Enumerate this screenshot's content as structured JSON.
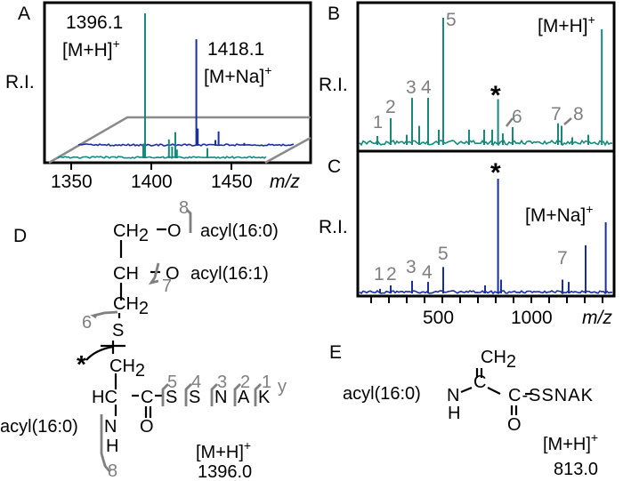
{
  "colors": {
    "mh": "#17887a",
    "mna": "#1a2f9e",
    "label_gray": "#7f7f7f",
    "plane": "#8a8a8a"
  },
  "chart_data": [
    {
      "panel": "A",
      "type": "line",
      "title": "",
      "xlabel": "m/z",
      "ylabel": "R.I.",
      "xlim": [
        1333,
        1500
      ],
      "xticks": [
        1350,
        1400,
        1450
      ],
      "series": [
        {
          "name": "[M+H]+",
          "color": "#17887a",
          "peaks": [
            [
              1396.1,
              100
            ],
            [
              1395,
              10
            ],
            [
              1411,
              13
            ],
            [
              1413,
              8
            ],
            [
              1415,
              18
            ],
            [
              1416,
              6
            ],
            [
              1435,
              7
            ]
          ]
        },
        {
          "name": "[M+Na]+",
          "color": "#1a2f9e",
          "peaks": [
            [
              1418.1,
              74
            ],
            [
              1419,
              12
            ],
            [
              1430,
              4
            ],
            [
              1432,
              10
            ],
            [
              1448,
              2
            ]
          ]
        }
      ],
      "annotations": [
        {
          "text": "1396.1",
          "sub": "[M+H]",
          "sup": "+"
        },
        {
          "text": "1418.1",
          "sub": "[M+Na]",
          "sup": "+"
        }
      ]
    },
    {
      "panel": "B",
      "type": "line",
      "xlabel": "m/z",
      "ylabel": "R.I.",
      "xlim": [
        0,
        1450
      ],
      "color": "#17887a",
      "peaks": [
        [
          135,
          7
        ],
        [
          210,
          21
        ],
        [
          300,
          8
        ],
        [
          330,
          37
        ],
        [
          370,
          15
        ],
        [
          420,
          37
        ],
        [
          480,
          12
        ],
        [
          505,
          100
        ],
        [
          650,
          12
        ],
        [
          735,
          12
        ],
        [
          780,
          12
        ],
        [
          813,
          36
        ],
        [
          840,
          9
        ],
        [
          895,
          14
        ],
        [
          1150,
          17
        ],
        [
          1170,
          15
        ],
        [
          1230,
          6
        ],
        [
          1320,
          8
        ],
        [
          1396,
          91
        ]
      ],
      "labels": [
        "1",
        "2",
        "3",
        "4",
        "5",
        "*",
        "6",
        "7",
        "8",
        "[M+H]+"
      ]
    },
    {
      "panel": "C",
      "type": "line",
      "xlabel": "m/z",
      "ylabel": "R.I.",
      "xlim": [
        0,
        1450
      ],
      "xticks": [
        500,
        1000
      ],
      "minor_ticks": [
        100,
        200,
        300,
        400,
        500,
        600,
        700,
        800,
        900,
        1000,
        1100,
        1200,
        1300,
        1400
      ],
      "color": "#1a2f9e",
      "peaks": [
        [
          150,
          4
        ],
        [
          210,
          7
        ],
        [
          330,
          11
        ],
        [
          420,
          10
        ],
        [
          505,
          23
        ],
        [
          740,
          7
        ],
        [
          813,
          100
        ],
        [
          830,
          12
        ],
        [
          1175,
          12
        ],
        [
          1210,
          10
        ],
        [
          1305,
          42
        ],
        [
          1418,
          62
        ]
      ],
      "labels": [
        "1",
        "2",
        "3",
        "4",
        "5",
        "*",
        "7",
        "[M+Na]+"
      ]
    }
  ],
  "panels": {
    "A": {
      "label": "A",
      "ri": "R.I.",
      "mz": "m/z",
      "ann1_val": "1396.1",
      "ann1_ion": "[M+H]",
      "ann2_val": "1418.1",
      "ann2_ion": "[M+Na]",
      "plus": "+"
    },
    "B": {
      "label": "B",
      "ri": "R.I.",
      "ion": "[M+H]",
      "plus": "+",
      "star": "*",
      "n": [
        "1",
        "2",
        "3",
        "4",
        "5",
        "6",
        "7",
        "8"
      ]
    },
    "C": {
      "label": "C",
      "ri": "R.I.",
      "ion": "[M+Na]",
      "plus": "+",
      "star": "*",
      "n": [
        "1",
        "2",
        "3",
        "4",
        "5",
        "7"
      ],
      "tick500": "500",
      "tick1000": "1000",
      "mz": "m/z"
    },
    "D": {
      "label": "D",
      "ch2": "CH",
      "two": "2",
      "o": "O",
      "ch": "CH",
      "acyl160": "acyl(16:0)",
      "acyl161": "acyl(16:1)",
      "s": "S",
      "hc": "HC",
      "c": "C",
      "seq": [
        "S",
        "S",
        "N",
        "A",
        "K"
      ],
      "y": "y",
      "frag_nums": [
        "5",
        "4",
        "3",
        "2",
        "1"
      ],
      "f8": "8",
      "f7": "7",
      "f6": "6",
      "star": "*",
      "n": "N",
      "h": "H",
      "ion": "[M+H]",
      "plus": "+",
      "mass": "1396.0"
    },
    "E": {
      "label": "E",
      "ch2": "CH",
      "two": "2",
      "acyl": "acyl(16:0)",
      "n": "N",
      "h": "H",
      "c": "C",
      "tail": "C-SSNAK",
      "o": "O",
      "ion": "[M+H]",
      "plus": "+",
      "mass": "813.0"
    }
  }
}
